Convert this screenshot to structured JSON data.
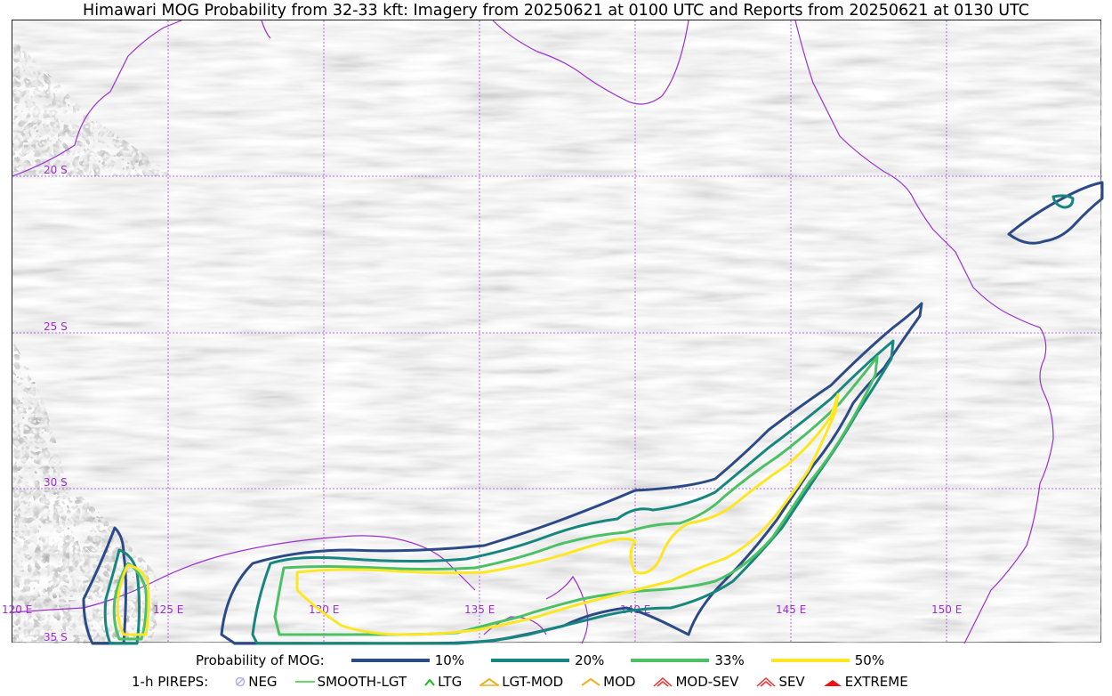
{
  "title": "Himawari MOG Probability from 32-33 kft: Imagery from 20250621 at 0100 UTC and Reports from 20250621 at 0130 UTC",
  "grid": {
    "lat_labels": [
      "20 S",
      "25 S",
      "30 S",
      "35 S"
    ],
    "lon_labels": [
      "120 E",
      "125 E",
      "130 E",
      "135 E",
      "140 E",
      "145 E",
      "150 E"
    ],
    "color": "#9b30d0"
  },
  "legend": {
    "probability_label": "Probability of MOG:",
    "probability_items": [
      {
        "label": "10%",
        "color": "#2b4a86"
      },
      {
        "label": "20%",
        "color": "#16867f"
      },
      {
        "label": "33%",
        "color": "#4cc064"
      },
      {
        "label": "50%",
        "color": "#fde725"
      }
    ],
    "pireps_label": "1-h PIREPS:",
    "pirep_items": [
      {
        "label": "NEG",
        "icon": "neg-circle-icon",
        "color": "#b0b0f0"
      },
      {
        "label": "SMOOTH-LGT",
        "icon": "line-icon",
        "color": "#30d030"
      },
      {
        "label": "LTG",
        "icon": "caret-icon",
        "color": "#10c010"
      },
      {
        "label": "LGT-MOD",
        "icon": "caret-bar-icon",
        "color": "#f0b020"
      },
      {
        "label": "MOD",
        "icon": "caret-icon",
        "color": "#f0b020"
      },
      {
        "label": "MOD-SEV",
        "icon": "double-caret-icon",
        "color": "#f03030"
      },
      {
        "label": "SEV",
        "icon": "double-caret-icon",
        "color": "#f03030"
      },
      {
        "label": "EXTREME",
        "icon": "filled-caret-icon",
        "color": "#f01010"
      }
    ]
  }
}
